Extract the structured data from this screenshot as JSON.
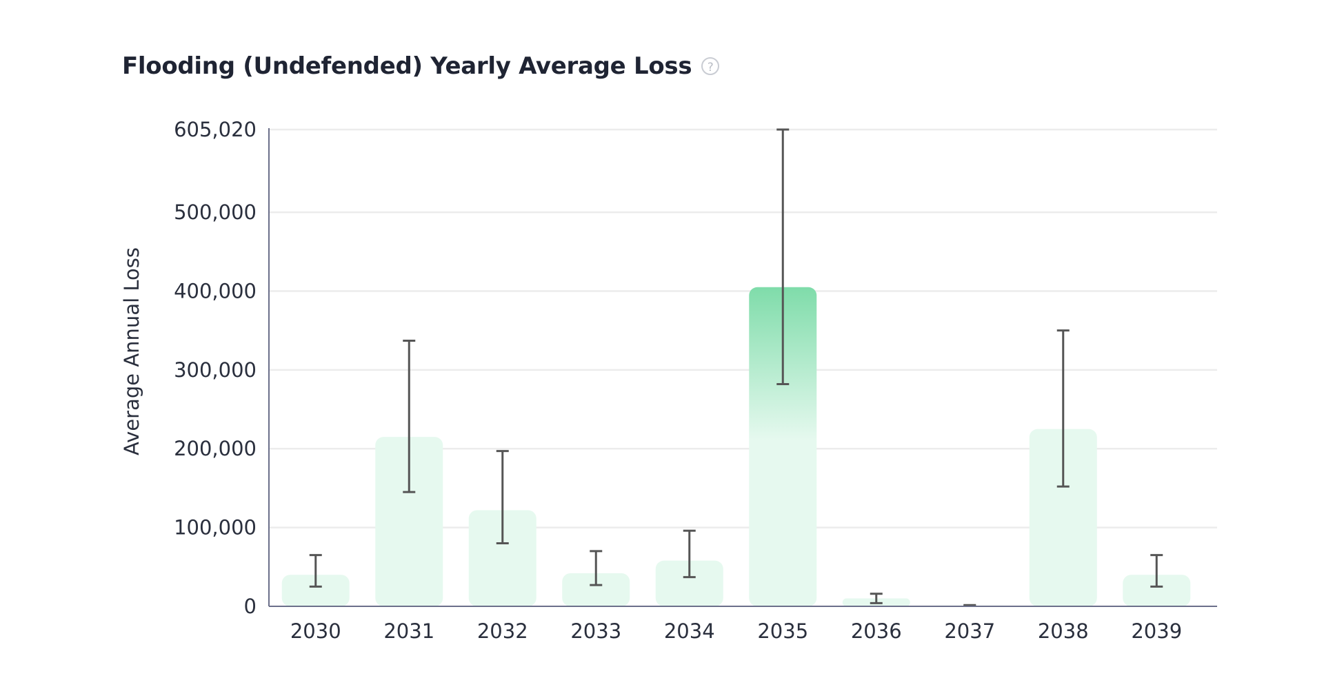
{
  "header": {
    "title": "Flooding (Undefended) Yearly Average Loss",
    "help_icon": "?"
  },
  "colors": {
    "bar_light": "#e6f9ef",
    "bar_highlight": "#7fdcaa",
    "error_bar": "#555555",
    "grid": "#ececec",
    "axis": "#6b6f8a"
  },
  "chart_data": {
    "type": "bar",
    "ylabel": "Average Annual Loss",
    "xlabel": "",
    "ylim": [
      0,
      605020
    ],
    "y_ticks": [
      "0",
      "100,000",
      "200,000",
      "300,000",
      "400,000",
      "500,000",
      "605,020"
    ],
    "y_tick_values": [
      0,
      100000,
      200000,
      300000,
      400000,
      500000,
      605020
    ],
    "categories": [
      "2030",
      "2031",
      "2032",
      "2033",
      "2034",
      "2035",
      "2036",
      "2037",
      "2038",
      "2039"
    ],
    "values": [
      40000,
      215000,
      122000,
      42000,
      58000,
      405000,
      10000,
      1000,
      225000,
      40000
    ],
    "error_low": [
      25000,
      145000,
      80000,
      27000,
      37000,
      282000,
      4000,
      500,
      152000,
      25000
    ],
    "error_high": [
      65000,
      337000,
      197000,
      70000,
      96000,
      605020,
      16000,
      1500,
      350000,
      65000
    ],
    "highlight_index": 5,
    "grid": true
  }
}
